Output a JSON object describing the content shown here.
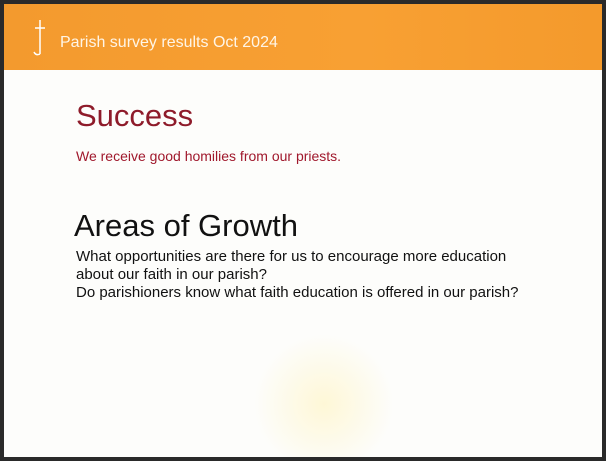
{
  "header": {
    "title": "Parish survey results Oct 2024"
  },
  "success": {
    "heading": "Success",
    "text": "We receive good homilies from our priests."
  },
  "growth": {
    "heading": "Areas of Growth",
    "lines": [
      "What opportunities are there for us to encourage more education about our faith in our parish?",
      "Do parishioners know what faith education is offered in our parish?"
    ]
  }
}
